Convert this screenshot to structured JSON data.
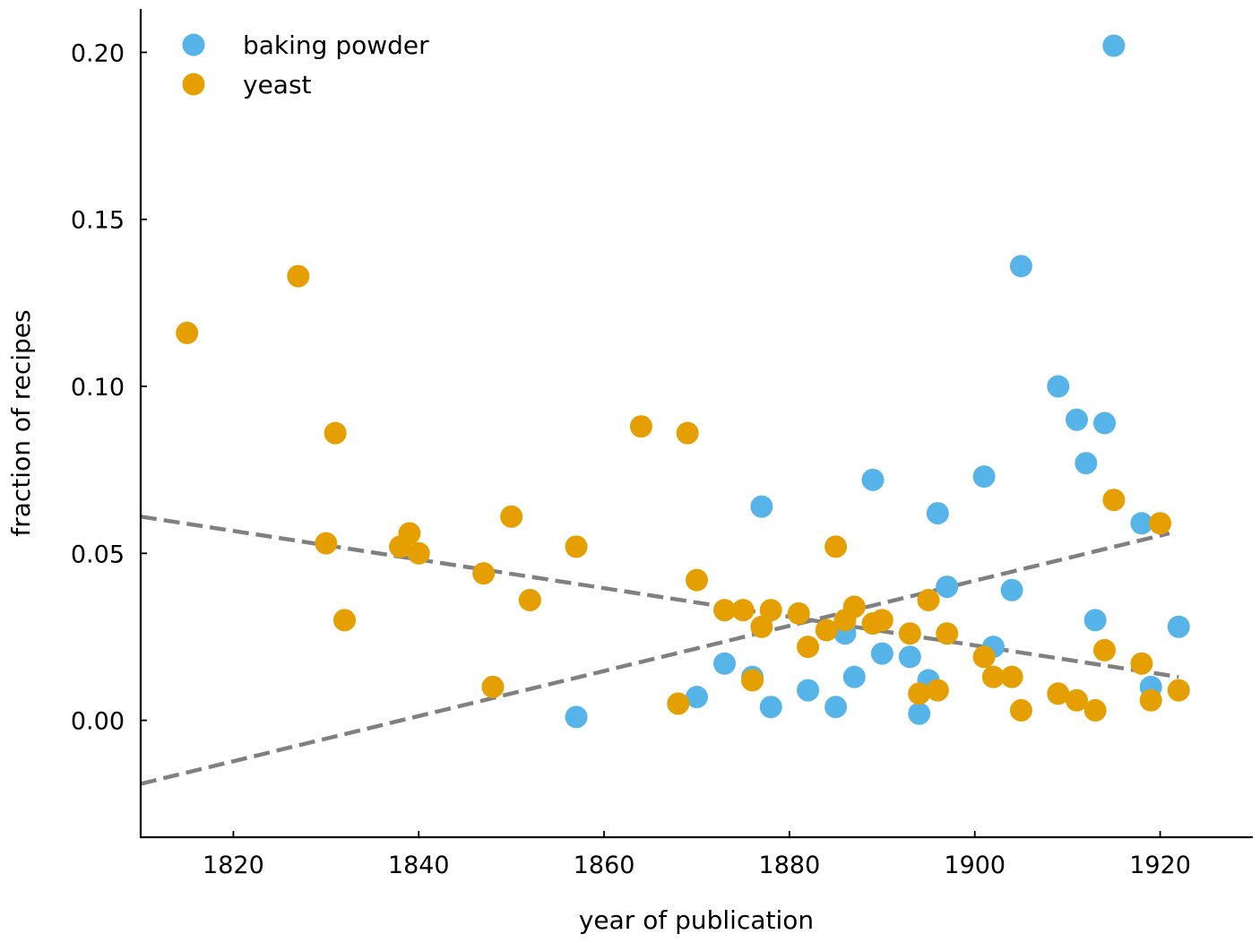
{
  "chart_data": {
    "type": "scatter",
    "xlabel": "year of publication",
    "ylabel": "fraction of recipes",
    "xlim": [
      1810,
      1930
    ],
    "ylim": [
      -0.035,
      0.213
    ],
    "x_ticks": [
      1820,
      1840,
      1860,
      1880,
      1900,
      1920
    ],
    "x_tick_labels": [
      "1820",
      "1840",
      "1860",
      "1880",
      "1900",
      "1920"
    ],
    "y_ticks": [
      0.0,
      0.05,
      0.1,
      0.15,
      0.2
    ],
    "y_tick_labels": [
      "0.00",
      "0.05",
      "0.10",
      "0.15",
      "0.20"
    ],
    "grid": false,
    "legend_position": "top-left",
    "series": [
      {
        "name": "baking powder",
        "color": "#56B4E9",
        "points": [
          [
            1857,
            0.001
          ],
          [
            1870,
            0.007
          ],
          [
            1873,
            0.017
          ],
          [
            1876,
            0.013
          ],
          [
            1877,
            0.064
          ],
          [
            1878,
            0.004
          ],
          [
            1882,
            0.009
          ],
          [
            1885,
            0.004
          ],
          [
            1886,
            0.026
          ],
          [
            1887,
            0.013
          ],
          [
            1889,
            0.072
          ],
          [
            1890,
            0.02
          ],
          [
            1893,
            0.019
          ],
          [
            1894,
            0.002
          ],
          [
            1895,
            0.012
          ],
          [
            1896,
            0.062
          ],
          [
            1897,
            0.04
          ],
          [
            1901,
            0.073
          ],
          [
            1902,
            0.022
          ],
          [
            1904,
            0.039
          ],
          [
            1905,
            0.136
          ],
          [
            1909,
            0.1
          ],
          [
            1911,
            0.09
          ],
          [
            1912,
            0.077
          ],
          [
            1913,
            0.03
          ],
          [
            1914,
            0.089
          ],
          [
            1915,
            0.202
          ],
          [
            1918,
            0.059
          ],
          [
            1919,
            0.01
          ],
          [
            1922,
            0.028
          ]
        ]
      },
      {
        "name": "yeast",
        "color": "#E69F00",
        "points": [
          [
            1815,
            0.116
          ],
          [
            1827,
            0.133
          ],
          [
            1830,
            0.053
          ],
          [
            1831,
            0.086
          ],
          [
            1832,
            0.03
          ],
          [
            1838,
            0.052
          ],
          [
            1839,
            0.056
          ],
          [
            1840,
            0.05
          ],
          [
            1847,
            0.044
          ],
          [
            1848,
            0.01
          ],
          [
            1850,
            0.061
          ],
          [
            1852,
            0.036
          ],
          [
            1857,
            0.052
          ],
          [
            1864,
            0.088
          ],
          [
            1868,
            0.005
          ],
          [
            1869,
            0.086
          ],
          [
            1870,
            0.042
          ],
          [
            1873,
            0.033
          ],
          [
            1875,
            0.033
          ],
          [
            1876,
            0.012
          ],
          [
            1877,
            0.028
          ],
          [
            1878,
            0.033
          ],
          [
            1881,
            0.032
          ],
          [
            1882,
            0.022
          ],
          [
            1884,
            0.027
          ],
          [
            1885,
            0.052
          ],
          [
            1886,
            0.03
          ],
          [
            1887,
            0.034
          ],
          [
            1889,
            0.029
          ],
          [
            1890,
            0.03
          ],
          [
            1893,
            0.026
          ],
          [
            1894,
            0.008
          ],
          [
            1895,
            0.036
          ],
          [
            1896,
            0.009
          ],
          [
            1897,
            0.026
          ],
          [
            1901,
            0.019
          ],
          [
            1902,
            0.013
          ],
          [
            1904,
            0.013
          ],
          [
            1905,
            0.003
          ],
          [
            1909,
            0.008
          ],
          [
            1911,
            0.006
          ],
          [
            1913,
            0.003
          ],
          [
            1914,
            0.021
          ],
          [
            1915,
            0.066
          ],
          [
            1918,
            0.017
          ],
          [
            1919,
            0.006
          ],
          [
            1920,
            0.059
          ],
          [
            1922,
            0.009
          ]
        ]
      }
    ],
    "trend_lines": [
      {
        "for": "baking powder",
        "color": "#808080",
        "from": [
          1810,
          -0.019
        ],
        "to": [
          1921,
          0.056
        ]
      },
      {
        "for": "yeast",
        "color": "#808080",
        "from": [
          1810,
          0.061
        ],
        "to": [
          1922,
          0.013
        ]
      }
    ]
  }
}
